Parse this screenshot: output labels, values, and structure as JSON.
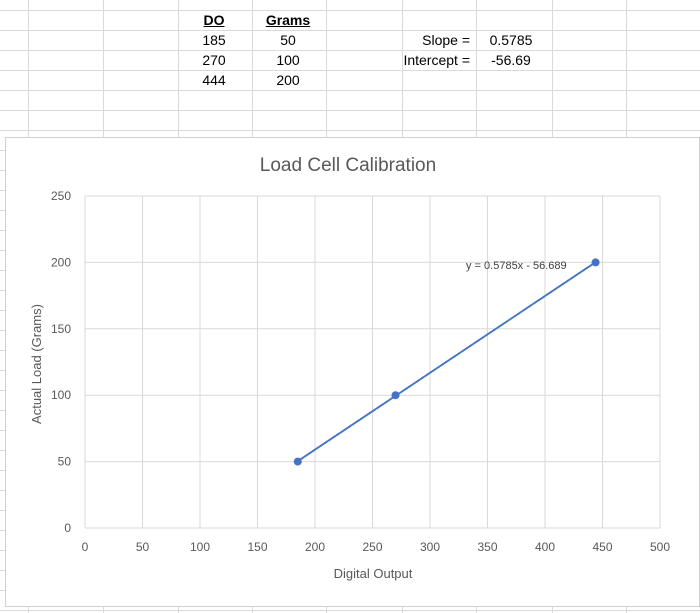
{
  "sheet": {
    "table": {
      "headers": [
        "DO",
        "Grams"
      ],
      "rows": [
        [
          "185",
          "50"
        ],
        [
          "270",
          "100"
        ],
        [
          "444",
          "200"
        ]
      ]
    },
    "stats": {
      "slope_label": "Slope =",
      "slope_value": "0.5785",
      "intercept_label": "Intercept =",
      "intercept_value": "-56.69"
    }
  },
  "chart_data": {
    "type": "scatter",
    "title": "Load Cell Calibration",
    "xlabel": "Digital Output",
    "ylabel": "Actual Load (Grams)",
    "xlim": [
      0,
      500
    ],
    "ylim": [
      0,
      250
    ],
    "x_ticks": [
      0,
      50,
      100,
      150,
      200,
      250,
      300,
      350,
      400,
      450,
      500
    ],
    "y_ticks": [
      0,
      50,
      100,
      150,
      200,
      250
    ],
    "grid": true,
    "legend": "none",
    "series": [
      {
        "x": [
          185,
          270,
          444
        ],
        "y": [
          50,
          100,
          200
        ],
        "color": "#4472c4"
      }
    ],
    "trendline": {
      "type": "linear",
      "slope": 0.5785,
      "intercept": -56.689,
      "label": "y = 0.5785x - 56.689",
      "color": "#4472c4"
    }
  }
}
